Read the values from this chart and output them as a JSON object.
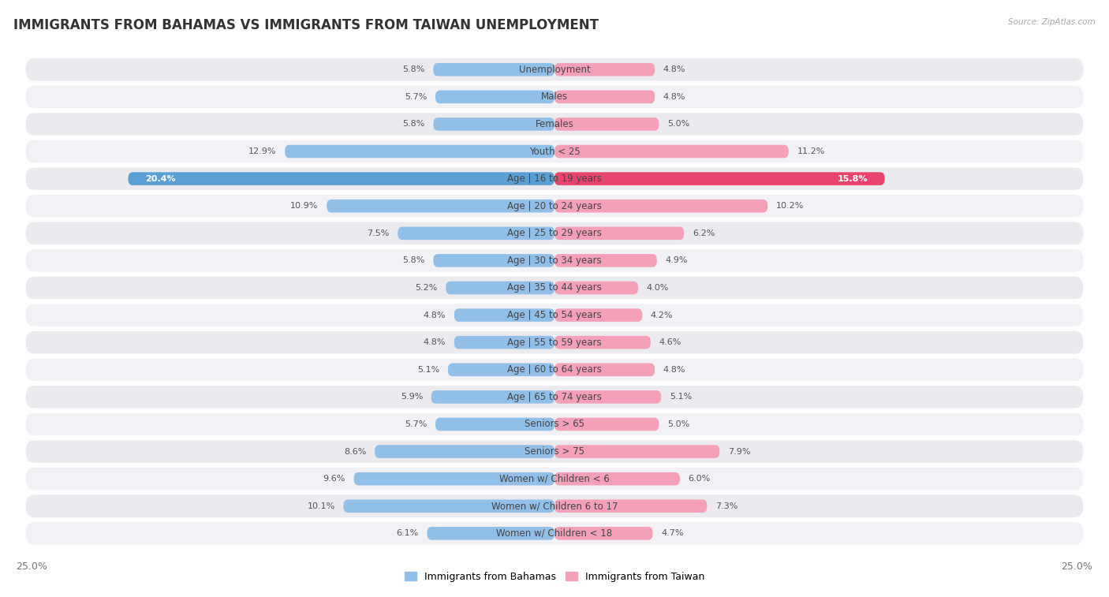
{
  "title": "IMMIGRANTS FROM BAHAMAS VS IMMIGRANTS FROM TAIWAN UNEMPLOYMENT",
  "source": "Source: ZipAtlas.com",
  "categories": [
    "Unemployment",
    "Males",
    "Females",
    "Youth < 25",
    "Age | 16 to 19 years",
    "Age | 20 to 24 years",
    "Age | 25 to 29 years",
    "Age | 30 to 34 years",
    "Age | 35 to 44 years",
    "Age | 45 to 54 years",
    "Age | 55 to 59 years",
    "Age | 60 to 64 years",
    "Age | 65 to 74 years",
    "Seniors > 65",
    "Seniors > 75",
    "Women w/ Children < 6",
    "Women w/ Children 6 to 17",
    "Women w/ Children < 18"
  ],
  "bahamas_values": [
    5.8,
    5.7,
    5.8,
    12.9,
    20.4,
    10.9,
    7.5,
    5.8,
    5.2,
    4.8,
    4.8,
    5.1,
    5.9,
    5.7,
    8.6,
    9.6,
    10.1,
    6.1
  ],
  "taiwan_values": [
    4.8,
    4.8,
    5.0,
    11.2,
    15.8,
    10.2,
    6.2,
    4.9,
    4.0,
    4.2,
    4.6,
    4.8,
    5.1,
    5.0,
    7.9,
    6.0,
    7.3,
    4.7
  ],
  "bahamas_color": "#92bfe8",
  "taiwan_color": "#f4a0b8",
  "bahamas_highlight_color": "#5b9fd4",
  "taiwan_highlight_color": "#e8456e",
  "axis_limit": 25.0,
  "bg_color": "#ffffff",
  "row_bg_color": "#e8e8ee",
  "row_inner_color": "#f5f5f8",
  "highlight_row": 4,
  "legend_bahamas": "Immigrants from Bahamas",
  "legend_taiwan": "Immigrants from Taiwan",
  "title_fontsize": 12,
  "label_fontsize": 8.5,
  "value_fontsize": 8.0
}
